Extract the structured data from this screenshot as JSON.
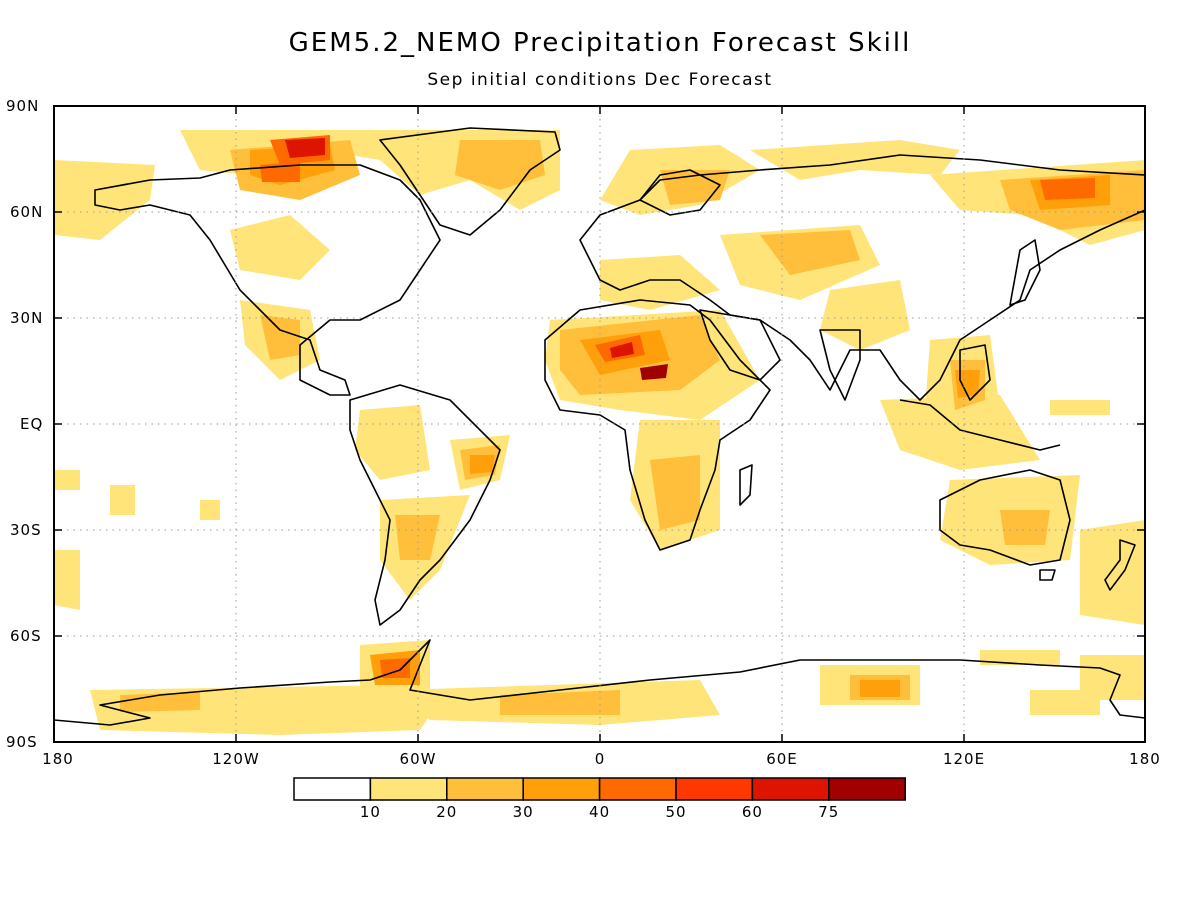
{
  "title": "GEM5.2_NEMO Precipitation Forecast Skill",
  "subtitle": "Sep initial conditions  Dec Forecast",
  "lat_labels": [
    "90N",
    "60N",
    "30N",
    "EQ",
    "30S",
    "60S",
    "90S"
  ],
  "lon_labels": [
    "180",
    "120W",
    "60W",
    "0",
    "60E",
    "120E",
    "180"
  ],
  "colorbar": {
    "levels": [
      "10",
      "20",
      "30",
      "40",
      "50",
      "60",
      "75"
    ],
    "colors": [
      "#ffffff",
      "#ffe47a",
      "#ffbf3a",
      "#ff9f0a",
      "#ff6a00",
      "#ff3800",
      "#dc1400",
      "#a00000"
    ]
  },
  "icons": [
    "coastline-outline",
    "graticule-grid"
  ]
}
